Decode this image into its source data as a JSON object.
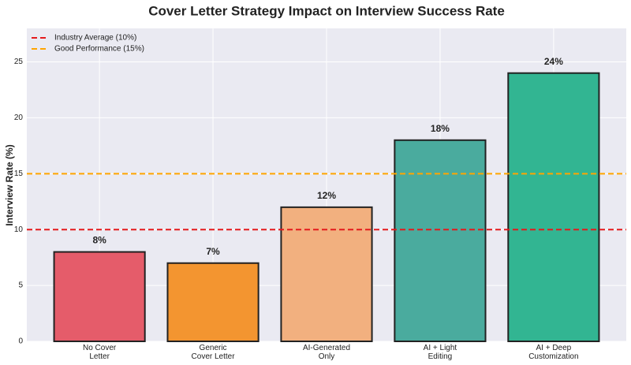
{
  "chart_data": {
    "type": "bar",
    "title": "Cover Letter Strategy Impact on Interview Success Rate",
    "y_label": "Interview Rate (%)",
    "categories": [
      "No Cover\nLetter",
      "Generic\nCover Letter",
      "AI-Generated\nOnly",
      "AI + Light\nEditing",
      "AI + Deep\nCustomization"
    ],
    "values": [
      8,
      7,
      12,
      18,
      24
    ],
    "value_labels": [
      "8%",
      "7%",
      "12%",
      "18%",
      "24%"
    ],
    "colors": [
      "#e55c6a",
      "#f39530",
      "#f2b07f",
      "#4aab9e",
      "#32b592"
    ],
    "ylim": [
      0,
      28
    ],
    "yticks": [
      0,
      5,
      10,
      15,
      20,
      25
    ],
    "grid": true,
    "reference_lines": [
      {
        "label": "Industry Average (10%)",
        "value": 10,
        "color": "#e41a1c"
      },
      {
        "label": "Good Performance (15%)",
        "value": 15,
        "color": "#ffa500"
      }
    ],
    "legend": "upper left"
  }
}
